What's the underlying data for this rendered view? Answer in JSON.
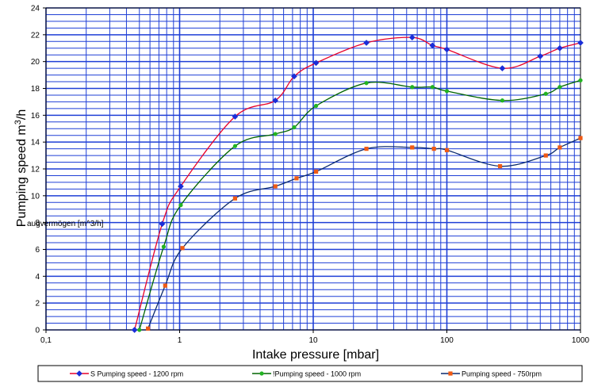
{
  "chart_data": {
    "type": "line",
    "x_scale": "log",
    "xlabel": "Intake pressure [mbar]",
    "ylabel": "Pumping speed  m3/h",
    "ylabel_main": "Pumping speed  m",
    "ylabel_sup": "3",
    "ylabel_tail": "/h",
    "overlay_text": "augvermögen [m^3/h]",
    "xlim": [
      0.1,
      1000
    ],
    "ylim": [
      0,
      24
    ],
    "grid": true,
    "legend_position": "bottom",
    "x_ticks": [
      0.1,
      1,
      10,
      100,
      1000
    ],
    "x_tick_labels": [
      "0,1",
      "1",
      "10",
      "100",
      "1000"
    ],
    "y_ticks": [
      0,
      2,
      4,
      6,
      8,
      10,
      12,
      14,
      16,
      18,
      20,
      22,
      24
    ],
    "y_tick_labels": [
      "0",
      "2",
      "4",
      "6",
      "8",
      "10",
      "12",
      "14",
      "16",
      "18",
      "20",
      "22",
      "24"
    ],
    "series": [
      {
        "name": "S Pumping speed - 1200 rpm",
        "line_color": "#e8002a",
        "marker_color": "#1a2ed8",
        "marker": "diamond",
        "x": [
          0.46,
          0.74,
          1.02,
          2.6,
          5.2,
          7.2,
          10.5,
          25,
          55,
          78,
          100,
          260,
          500,
          700,
          1000
        ],
        "y": [
          0,
          7.9,
          10.7,
          15.9,
          17.1,
          18.9,
          19.9,
          21.4,
          21.8,
          21.2,
          20.9,
          19.5,
          20.4,
          21,
          21.4
        ]
      },
      {
        "name": "!Pumping speed - 1000 rpm",
        "line_color": "#006400",
        "marker_color": "#22b422",
        "marker": "circle",
        "x": [
          0.5,
          0.76,
          1.02,
          2.6,
          5.2,
          7.2,
          10.5,
          25,
          55,
          78,
          100,
          260,
          550,
          700,
          1000
        ],
        "y": [
          0,
          6.2,
          9.3,
          13.7,
          14.6,
          15.1,
          16.7,
          18.4,
          18.1,
          18.1,
          17.8,
          17.1,
          17.6,
          18.1,
          18.6
        ]
      },
      {
        "name": "Pumping speed - 750rpm",
        "line_color": "#0a2a6e",
        "marker_color": "#f05a14",
        "marker": "square",
        "x": [
          0.58,
          0.78,
          1.05,
          2.6,
          5.2,
          7.5,
          10.5,
          25,
          55,
          80,
          100,
          250,
          550,
          700,
          1000
        ],
        "y": [
          0.1,
          3.3,
          6.1,
          9.8,
          10.7,
          11.3,
          11.8,
          13.5,
          13.6,
          13.5,
          13.4,
          12.2,
          13,
          13.6,
          14.3
        ]
      }
    ]
  }
}
